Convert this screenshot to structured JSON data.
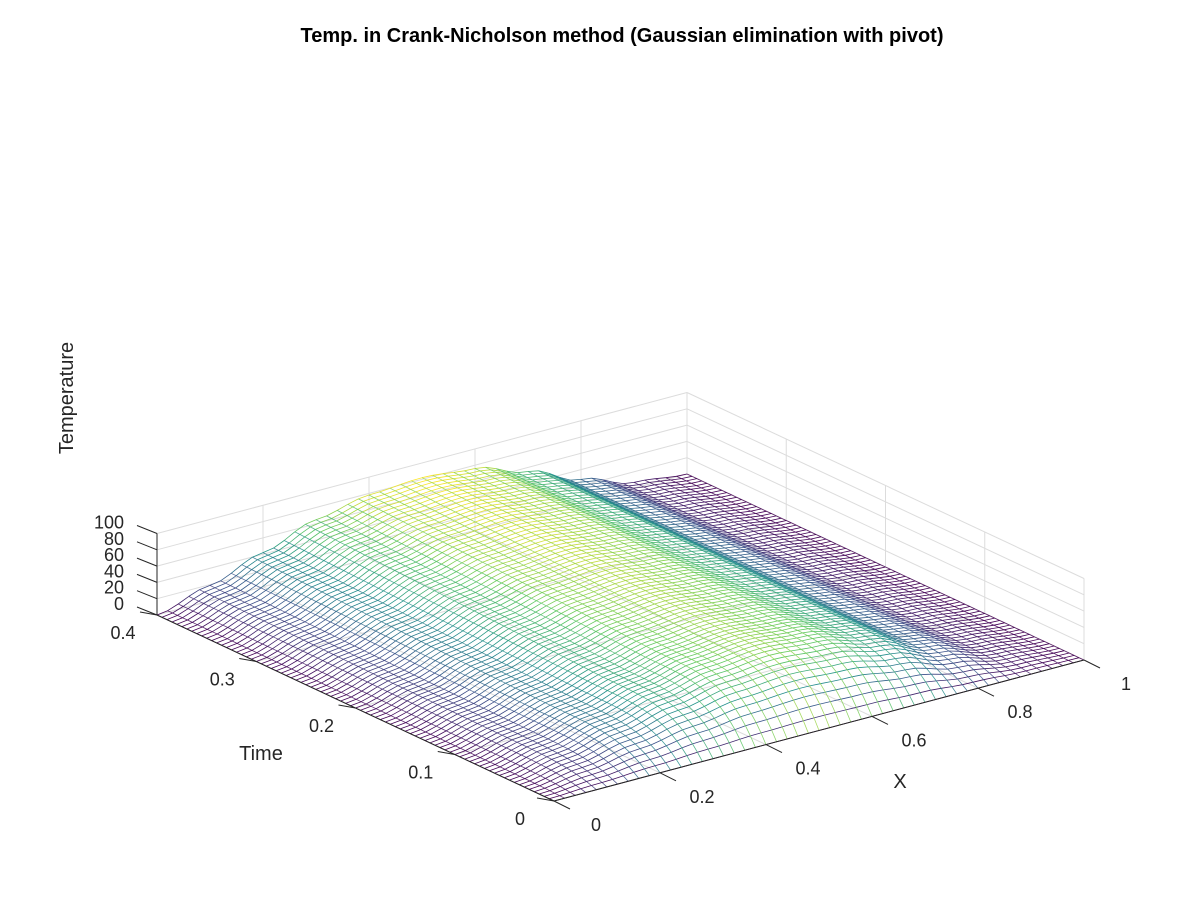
{
  "chart_data": {
    "type": "surface",
    "style": "mesh",
    "title": "Temp. in Crank-Nicholson method (Gaussian elimination with pivot)",
    "xlabel": "X",
    "ylabel": "Time",
    "zlabel": "Temperature",
    "xlim": [
      0,
      1
    ],
    "ylim": [
      0,
      0.4
    ],
    "zlim": [
      0,
      100
    ],
    "x_ticks": [
      "0",
      "0.2",
      "0.4",
      "0.6",
      "0.8",
      "1"
    ],
    "y_ticks": [
      "0",
      "0.1",
      "0.2",
      "0.3",
      "0.4"
    ],
    "z_ticks": [
      "0",
      "20",
      "40",
      "60",
      "80",
      "100"
    ],
    "grid": true,
    "colormap": "viridis",
    "colormap_stops": [
      "#440154",
      "#3b528b",
      "#21918c",
      "#5ec962",
      "#fde725"
    ],
    "mesh_resolution": {
      "x_points": 51,
      "t_points": 81
    },
    "surface_profile": [
      {
        "time": 0.0,
        "x": [
          0,
          0.1,
          0.2,
          0.3,
          0.4,
          0.5,
          0.6,
          0.7,
          0.8,
          0.9,
          1.0
        ],
        "temperature": [
          0,
          0,
          0,
          0,
          0,
          0,
          0,
          0,
          0,
          0,
          0
        ]
      },
      {
        "time": 0.1,
        "x": [
          0,
          0.1,
          0.2,
          0.3,
          0.4,
          0.5,
          0.6,
          0.7,
          0.8,
          0.9,
          1.0
        ],
        "temperature": [
          0,
          14,
          31,
          48,
          62,
          68,
          63,
          48,
          24,
          6,
          0
        ]
      },
      {
        "time": 0.2,
        "x": [
          0,
          0.1,
          0.2,
          0.3,
          0.4,
          0.5,
          0.6,
          0.7,
          0.8,
          0.9,
          1.0
        ],
        "temperature": [
          0,
          15,
          34,
          54,
          68,
          73,
          67,
          50,
          26,
          7,
          0
        ]
      },
      {
        "time": 0.3,
        "x": [
          0,
          0.1,
          0.2,
          0.3,
          0.4,
          0.5,
          0.6,
          0.7,
          0.8,
          0.9,
          1.0
        ],
        "temperature": [
          0,
          17,
          38,
          59,
          73,
          78,
          72,
          53,
          27,
          7,
          0
        ]
      },
      {
        "time": 0.4,
        "x": [
          0,
          0.1,
          0.2,
          0.3,
          0.4,
          0.5,
          0.6,
          0.7,
          0.8,
          0.9,
          1.0
        ],
        "temperature": [
          0,
          19,
          42,
          65,
          78,
          82,
          76,
          55,
          28,
          7,
          0
        ]
      }
    ]
  }
}
